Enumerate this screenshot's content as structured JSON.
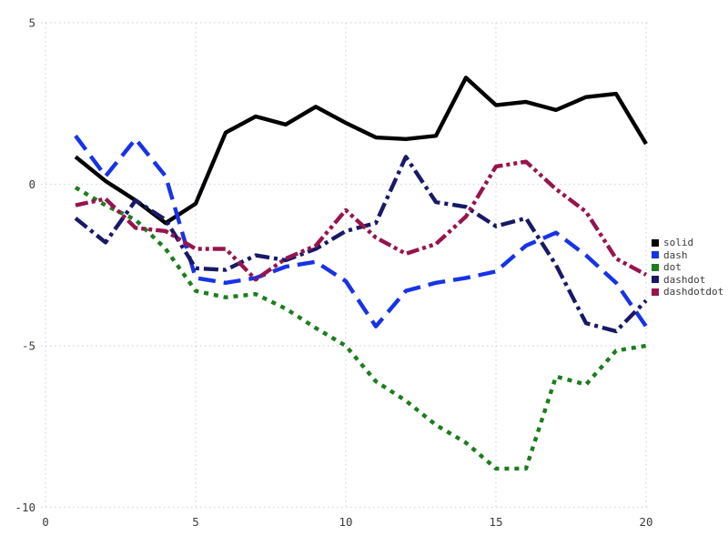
{
  "chart_data": {
    "type": "line",
    "title": "",
    "xlabel": "",
    "ylabel": "",
    "grid": true,
    "legend_position": "right",
    "xlim": [
      0,
      20
    ],
    "ylim": [
      -10,
      5
    ],
    "xticks": [
      0,
      5,
      10,
      15,
      20
    ],
    "yticks": [
      5,
      0,
      -5,
      -10
    ],
    "x": [
      1,
      2,
      3,
      4,
      5,
      6,
      7,
      8,
      9,
      10,
      11,
      12,
      13,
      14,
      15,
      16,
      17,
      18,
      19,
      20
    ],
    "series": [
      {
        "name": "solid",
        "color": "#000000",
        "line_style": "solid",
        "values": [
          0.85,
          0.1,
          -0.5,
          -1.2,
          -0.6,
          1.6,
          2.1,
          1.85,
          2.4,
          1.9,
          1.45,
          1.4,
          1.5,
          3.3,
          2.45,
          2.55,
          2.3,
          2.7,
          2.8,
          1.25
        ]
      },
      {
        "name": "dash",
        "color": "#1733e8",
        "line_style": "dash",
        "values": [
          1.5,
          0.25,
          1.4,
          0.25,
          -2.9,
          -3.05,
          -2.9,
          -2.55,
          -2.4,
          -3.0,
          -4.4,
          -3.3,
          -3.05,
          -2.9,
          -2.7,
          -1.9,
          -1.5,
          -2.2,
          -3.05,
          -4.4
        ]
      },
      {
        "name": "dot",
        "color": "#1d7d1d",
        "line_style": "dot",
        "values": [
          -0.1,
          -0.65,
          -1.1,
          -2.0,
          -3.3,
          -3.5,
          -3.4,
          -3.85,
          -4.45,
          -5.0,
          -6.1,
          -6.7,
          -7.45,
          -8.0,
          -8.8,
          -8.8,
          -5.95,
          -6.2,
          -5.15,
          -5.0
        ]
      },
      {
        "name": "dashdot",
        "color": "#191966",
        "line_style": "dashdot",
        "values": [
          -1.05,
          -1.8,
          -0.5,
          -1.1,
          -2.6,
          -2.65,
          -2.2,
          -2.35,
          -2.0,
          -1.45,
          -1.2,
          0.85,
          -0.55,
          -0.7,
          -1.3,
          -1.05,
          -2.5,
          -4.3,
          -4.55,
          -3.6
        ]
      },
      {
        "name": "dashdotdot",
        "color": "#97144d",
        "line_style": "dashdotdot",
        "values": [
          -0.65,
          -0.45,
          -1.35,
          -1.45,
          -2.0,
          -2.0,
          -2.95,
          -2.3,
          -1.9,
          -0.8,
          -1.65,
          -2.15,
          -1.85,
          -1.0,
          0.55,
          0.7,
          -0.15,
          -0.85,
          -2.3,
          -2.8
        ]
      }
    ],
    "legend_entries": [
      "solid",
      "dash",
      "dot",
      "dashdot",
      "dashdotdot"
    ]
  },
  "styles": {
    "background": "#ffffff",
    "grid_color": "#d4d4ea",
    "tick_label_color": "#3c3c3c",
    "legend_text_color": "#3c3c3c"
  }
}
